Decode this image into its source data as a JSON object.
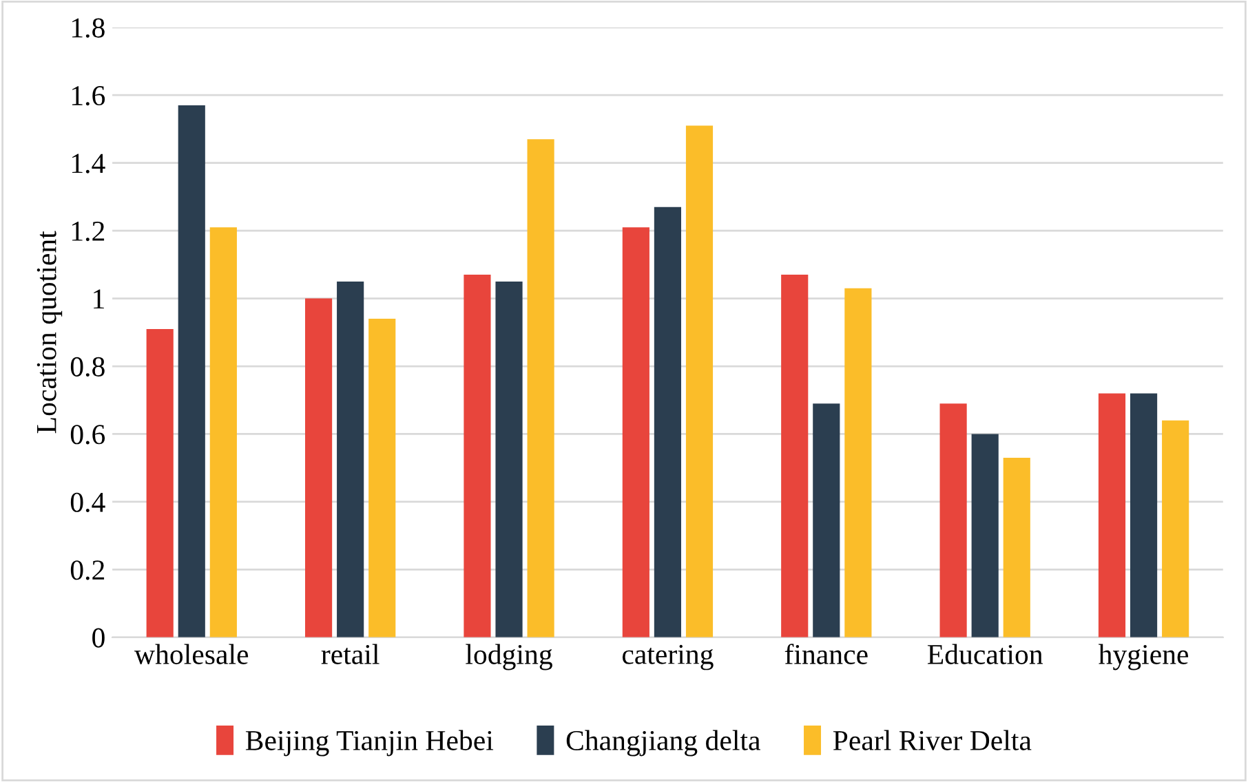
{
  "chart_data": {
    "type": "bar",
    "ylabel": "Location quotient",
    "categories": [
      "wholesale",
      "retail",
      "lodging",
      "catering",
      "finance",
      "Education",
      "hygiene"
    ],
    "series": [
      {
        "name": "Beijing Tianjin Hebei",
        "color": "#e8453c",
        "values": [
          0.91,
          1.0,
          1.07,
          1.21,
          1.07,
          0.69,
          0.72
        ]
      },
      {
        "name": "Changjiang delta",
        "color": "#2b3e50",
        "values": [
          1.57,
          1.05,
          1.05,
          1.27,
          0.69,
          0.6,
          0.72
        ]
      },
      {
        "name": "Pearl River Delta",
        "color": "#fbbd29",
        "values": [
          1.21,
          0.94,
          1.47,
          1.51,
          1.03,
          0.53,
          0.64
        ]
      }
    ],
    "ylim": [
      0,
      1.8
    ],
    "yticks": [
      0,
      0.2,
      0.4,
      0.6,
      0.8,
      1,
      1.2,
      1.4,
      1.6,
      1.8
    ],
    "grid": "y",
    "legend": "bottom"
  }
}
